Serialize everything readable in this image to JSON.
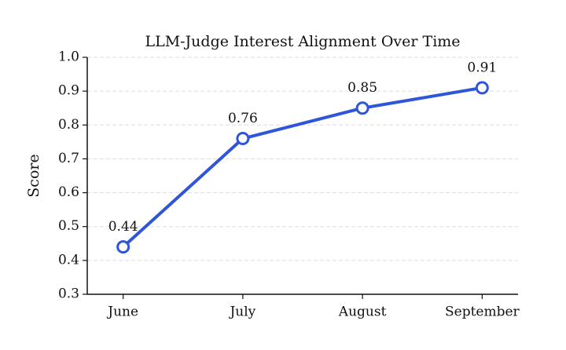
{
  "chart_data": {
    "type": "line",
    "title": "LLM-Judge Interest Alignment Over Time",
    "y_label": "Score",
    "categories": [
      "June",
      "July",
      "August",
      "September"
    ],
    "values": [
      0.44,
      0.76,
      0.85,
      0.91
    ],
    "color": "#2f55d9",
    "ylim": [
      0.3,
      1.0
    ],
    "yticks": [
      0.3,
      0.4,
      0.5,
      0.6,
      0.7,
      0.8,
      0.9,
      {
        "value": 1.0,
        "label": "1.0"
      }
    ],
    "grid": true
  }
}
